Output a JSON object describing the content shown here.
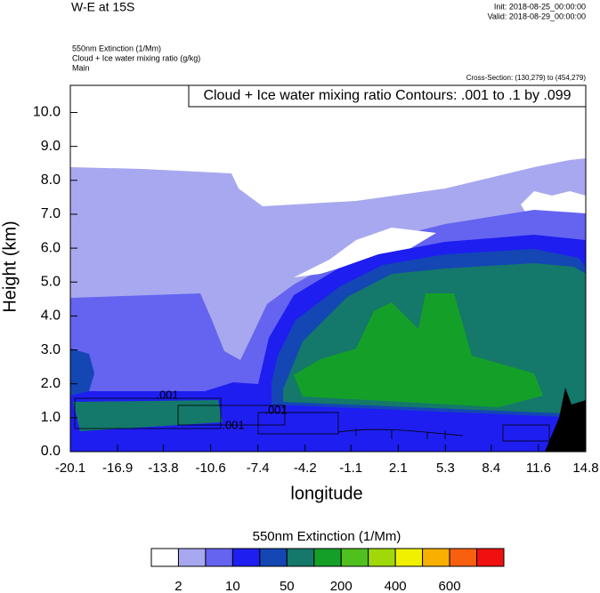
{
  "chart_data": {
    "type": "contour",
    "title": "W-E at 15S",
    "init": "Init: 2018-08-25_00:00:00",
    "valid": "Valid: 2018-08-29_00:00:00",
    "fields": [
      "550nm Extinction   (1/Mm)",
      "Cloud + Ice water mixing ratio   (g/kg)",
      "Main"
    ],
    "cross_section": "Cross-Section: (130,279) to (454,279)",
    "contour_info": "Cloud + Ice water mixing ratio Contours: .001 to .1 by .099",
    "contour_labels": [
      ".001",
      ".001",
      ".001"
    ],
    "xlabel": "longitude",
    "ylabel": "Height (km)",
    "xlim": [
      -20.1,
      14.8
    ],
    "xticks": [
      -20.1,
      -16.9,
      -13.8,
      -10.6,
      -7.4,
      -4.2,
      -1.1,
      2.1,
      5.3,
      8.4,
      11.6,
      14.8
    ],
    "ylim": [
      0,
      10.8
    ],
    "yticks": [
      {
        "value": 0,
        "label": "0.0"
      },
      {
        "value": 1,
        "label": "1.0"
      },
      {
        "value": 2,
        "label": "2.0"
      },
      {
        "value": 3,
        "label": "3.0"
      },
      {
        "value": 4,
        "label": "4.0"
      },
      {
        "value": 5,
        "label": "5.0"
      },
      {
        "value": 6,
        "label": "6.0"
      },
      {
        "value": 7,
        "label": "7.0"
      },
      {
        "value": 8,
        "label": "8.0"
      },
      {
        "value": 9,
        "label": "9.0"
      },
      {
        "value": 10,
        "label": "10.0"
      }
    ],
    "colorbar": {
      "title": "550nm Extinction  (1/Mm)",
      "colors": [
        "#ffffff",
        "#a8a8f0",
        "#6464f0",
        "#1e1ef0",
        "#1446b4",
        "#14786a",
        "#14a028",
        "#50c01e",
        "#a0d80a",
        "#f0f000",
        "#f8b000",
        "#f86010",
        "#f01010"
      ],
      "labels": [
        2,
        10,
        50,
        200,
        400,
        600
      ]
    }
  }
}
